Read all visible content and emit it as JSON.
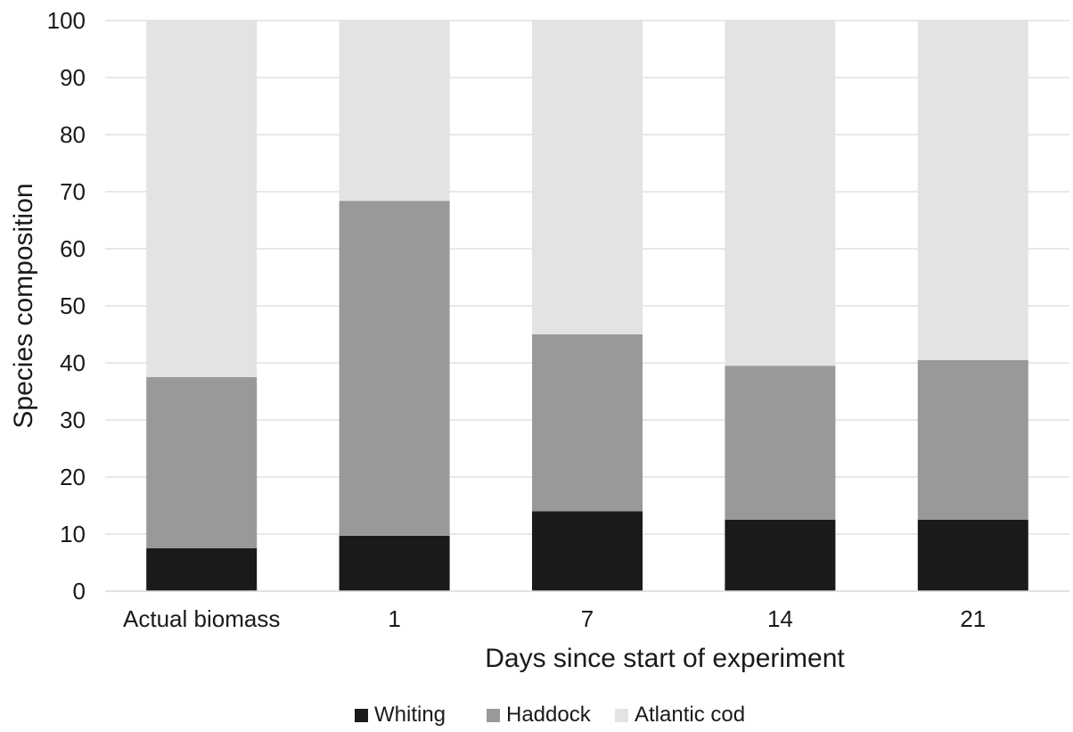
{
  "chart_data": {
    "type": "bar",
    "stacked": true,
    "title": "",
    "xlabel": "Days since start of experiment",
    "ylabel": "Species composition",
    "ylim": [
      0,
      100
    ],
    "yticks": [
      0,
      10,
      20,
      30,
      40,
      50,
      60,
      70,
      80,
      90,
      100
    ],
    "grid": true,
    "legend_position": "bottom",
    "categories": [
      "Actual biomass",
      "1",
      "7",
      "14",
      "21"
    ],
    "series": [
      {
        "name": "Whiting",
        "color": "#1a1a1a",
        "values": [
          7.5,
          9.7,
          14.0,
          12.5,
          12.5
        ]
      },
      {
        "name": "Haddock",
        "color": "#999999",
        "values": [
          30.0,
          58.7,
          31.0,
          27.0,
          28.0
        ]
      },
      {
        "name": "Atlantic cod",
        "color": "#e3e3e3",
        "values": [
          62.5,
          31.6,
          55.0,
          60.5,
          59.5
        ]
      }
    ]
  }
}
